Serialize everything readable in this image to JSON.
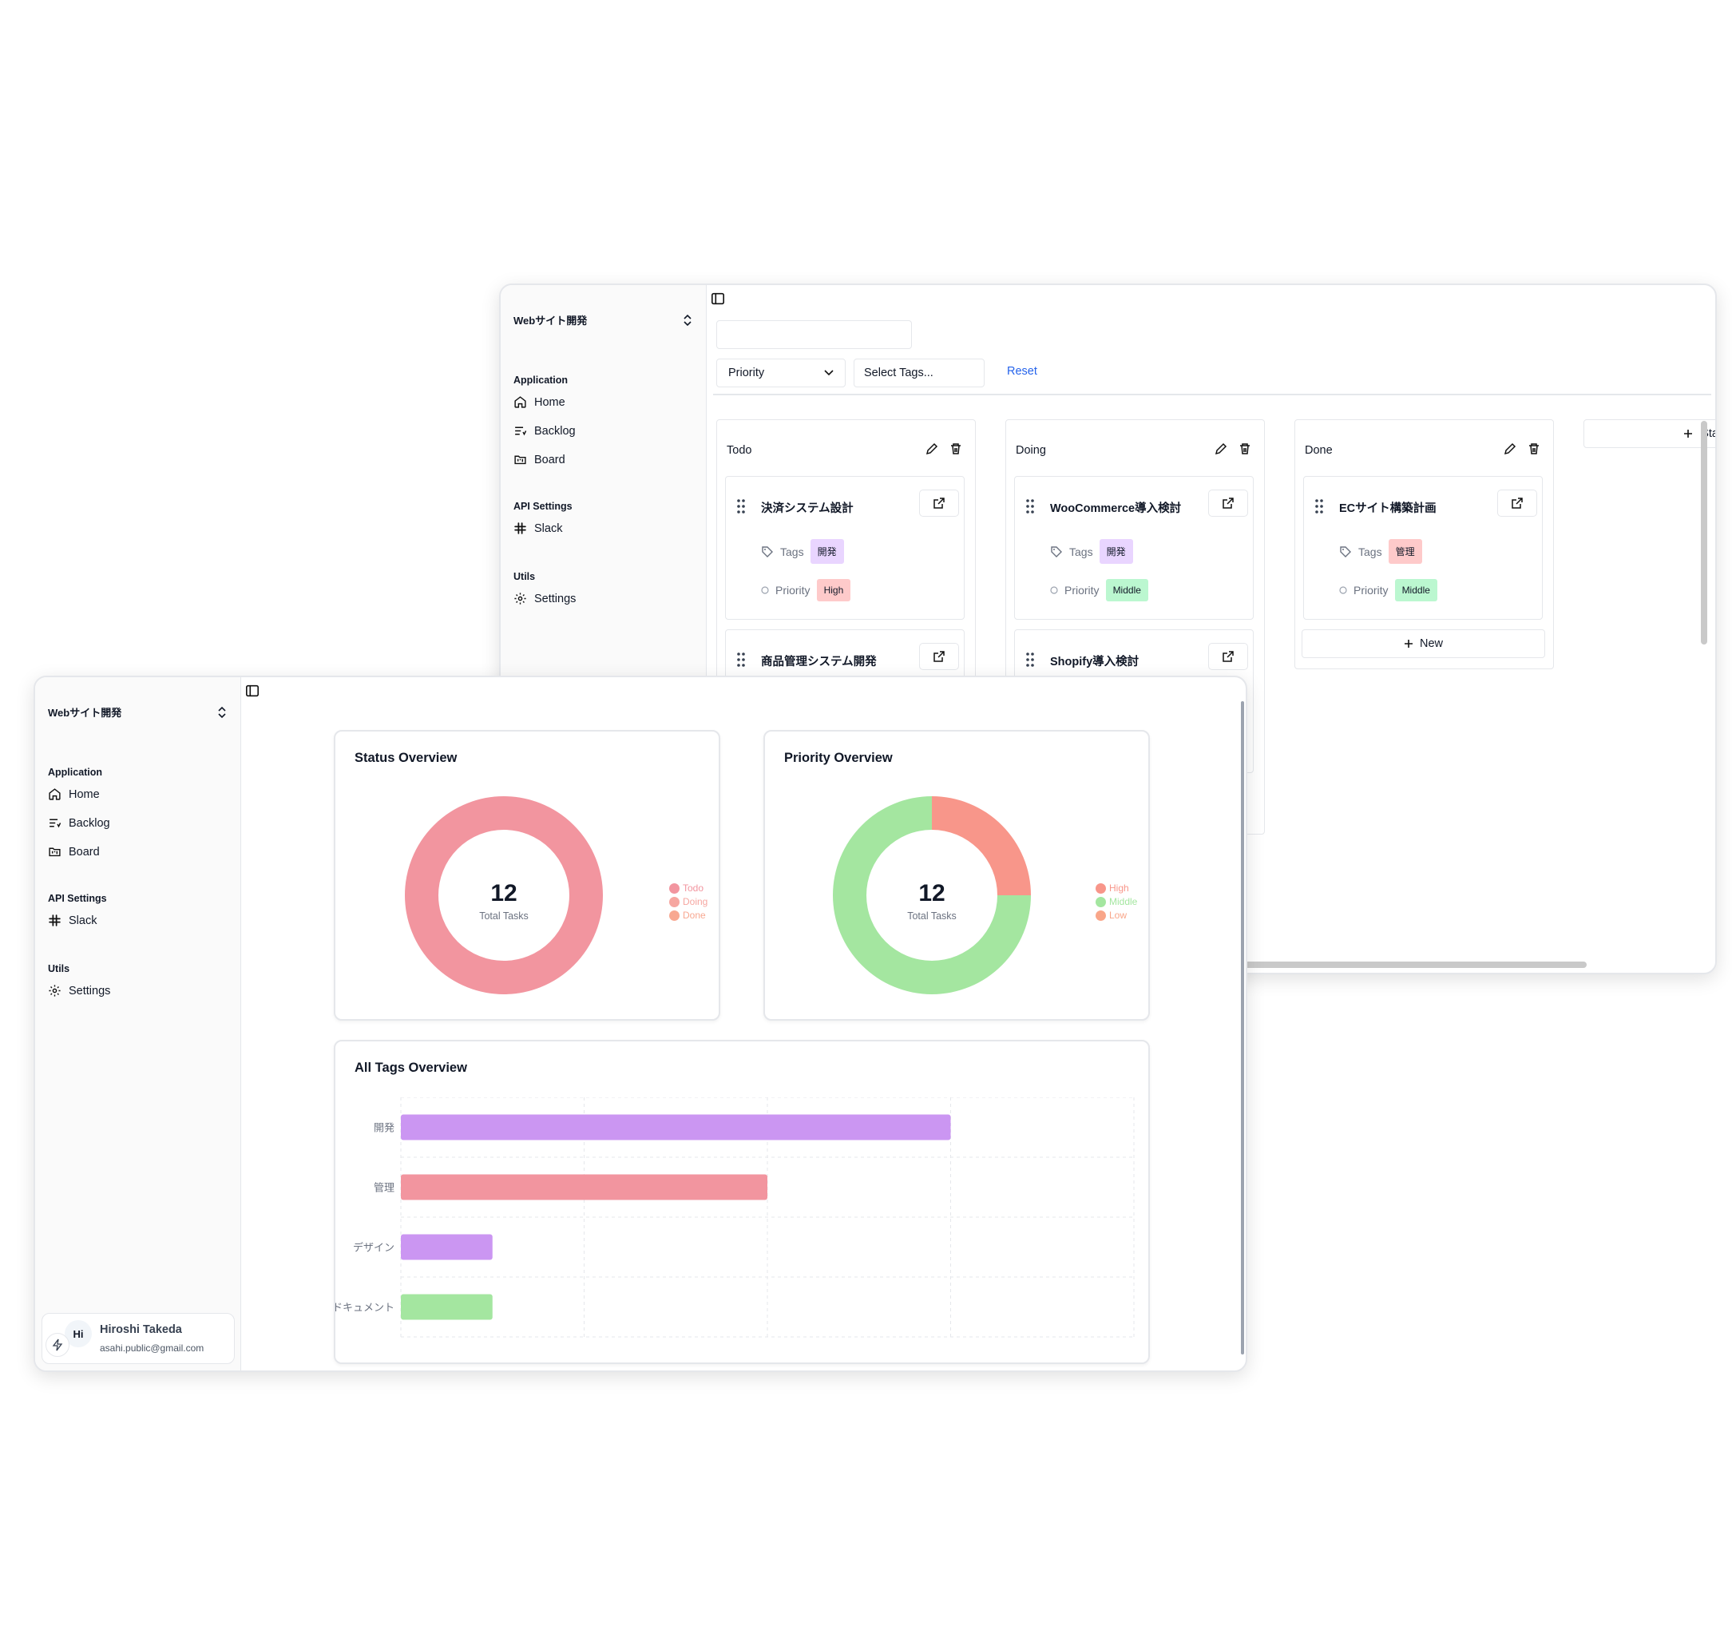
{
  "back_window": {
    "team": "Webサイト開発",
    "nav": {
      "application": "Application",
      "home": "Home",
      "backlog": "Backlog",
      "board": "Board",
      "api_settings": "API Settings",
      "slack": "Slack",
      "utils": "Utils",
      "settings": "Settings"
    },
    "filters": {
      "search_value": "",
      "priority_label": "Priority",
      "tags_label": "Select Tags...",
      "reset_label": "Reset"
    },
    "columns": [
      {
        "title": "Todo",
        "tasks": [
          {
            "title": "決済システム設計",
            "tags_label": "Tags",
            "tag": "開発",
            "priority_label": "Priority",
            "priority": "High"
          },
          {
            "title": "商品管理システム開発"
          }
        ]
      },
      {
        "title": "Doing",
        "tasks": [
          {
            "title": "WooCommerce導入検討",
            "tags_label": "Tags",
            "tag": "開発",
            "priority_label": "Priority",
            "priority": "Middle"
          },
          {
            "title": "Shopify導入検討"
          }
        ]
      },
      {
        "title": "Done",
        "tasks": [
          {
            "title": "ECサイト構築計画",
            "tags_label": "Tags",
            "tag": "管理",
            "priority_label": "Priority",
            "priority": "Middle"
          }
        ],
        "new_label": "New"
      }
    ],
    "add_status_label": "Sta"
  },
  "front_window": {
    "team": "Webサイト開発",
    "nav": {
      "application": "Application",
      "home": "Home",
      "backlog": "Backlog",
      "board": "Board",
      "api_settings": "API Settings",
      "slack": "Slack",
      "utils": "Utils",
      "settings": "Settings"
    },
    "user": {
      "initials": "Hi",
      "name": "Hiroshi Takeda",
      "email": "asahi.public@gmail.com"
    },
    "status_card": {
      "title": "Status Overview",
      "total": "12",
      "total_label": "Total Tasks",
      "legend": [
        "Todo",
        "Doing",
        "Done"
      ]
    },
    "priority_card": {
      "title": "Priority Overview",
      "total": "12",
      "total_label": "Total Tasks",
      "legend": [
        "High",
        "Middle",
        "Low"
      ]
    },
    "tags_card": {
      "title": "All Tags Overview"
    }
  },
  "colors": {
    "todo": "#f2959f",
    "doing": "#f6a6a0",
    "done": "#f8a891",
    "high": "#f8968a",
    "middle": "#a4e6a0",
    "low": "#f9a689",
    "tag_dev": "#cb96f2",
    "tag_mgmt": "#f2959f",
    "tag_design": "#cb96f2",
    "tag_doc": "#a4e6a0"
  },
  "chart_data": [
    {
      "type": "pie",
      "title": "Status Overview",
      "categories": [
        "Todo",
        "Doing",
        "Done"
      ],
      "values": [
        12,
        0,
        0
      ]
    },
    {
      "type": "pie",
      "title": "Priority Overview",
      "categories": [
        "High",
        "Middle",
        "Low"
      ],
      "values": [
        3,
        9,
        0
      ]
    },
    {
      "type": "bar",
      "title": "All Tags Overview",
      "orientation": "horizontal",
      "categories": [
        "開発",
        "管理",
        "デザイン",
        "ドキュメント"
      ],
      "values": [
        6,
        4,
        1,
        1
      ],
      "xlim": [
        0,
        8
      ],
      "grid": true
    }
  ]
}
